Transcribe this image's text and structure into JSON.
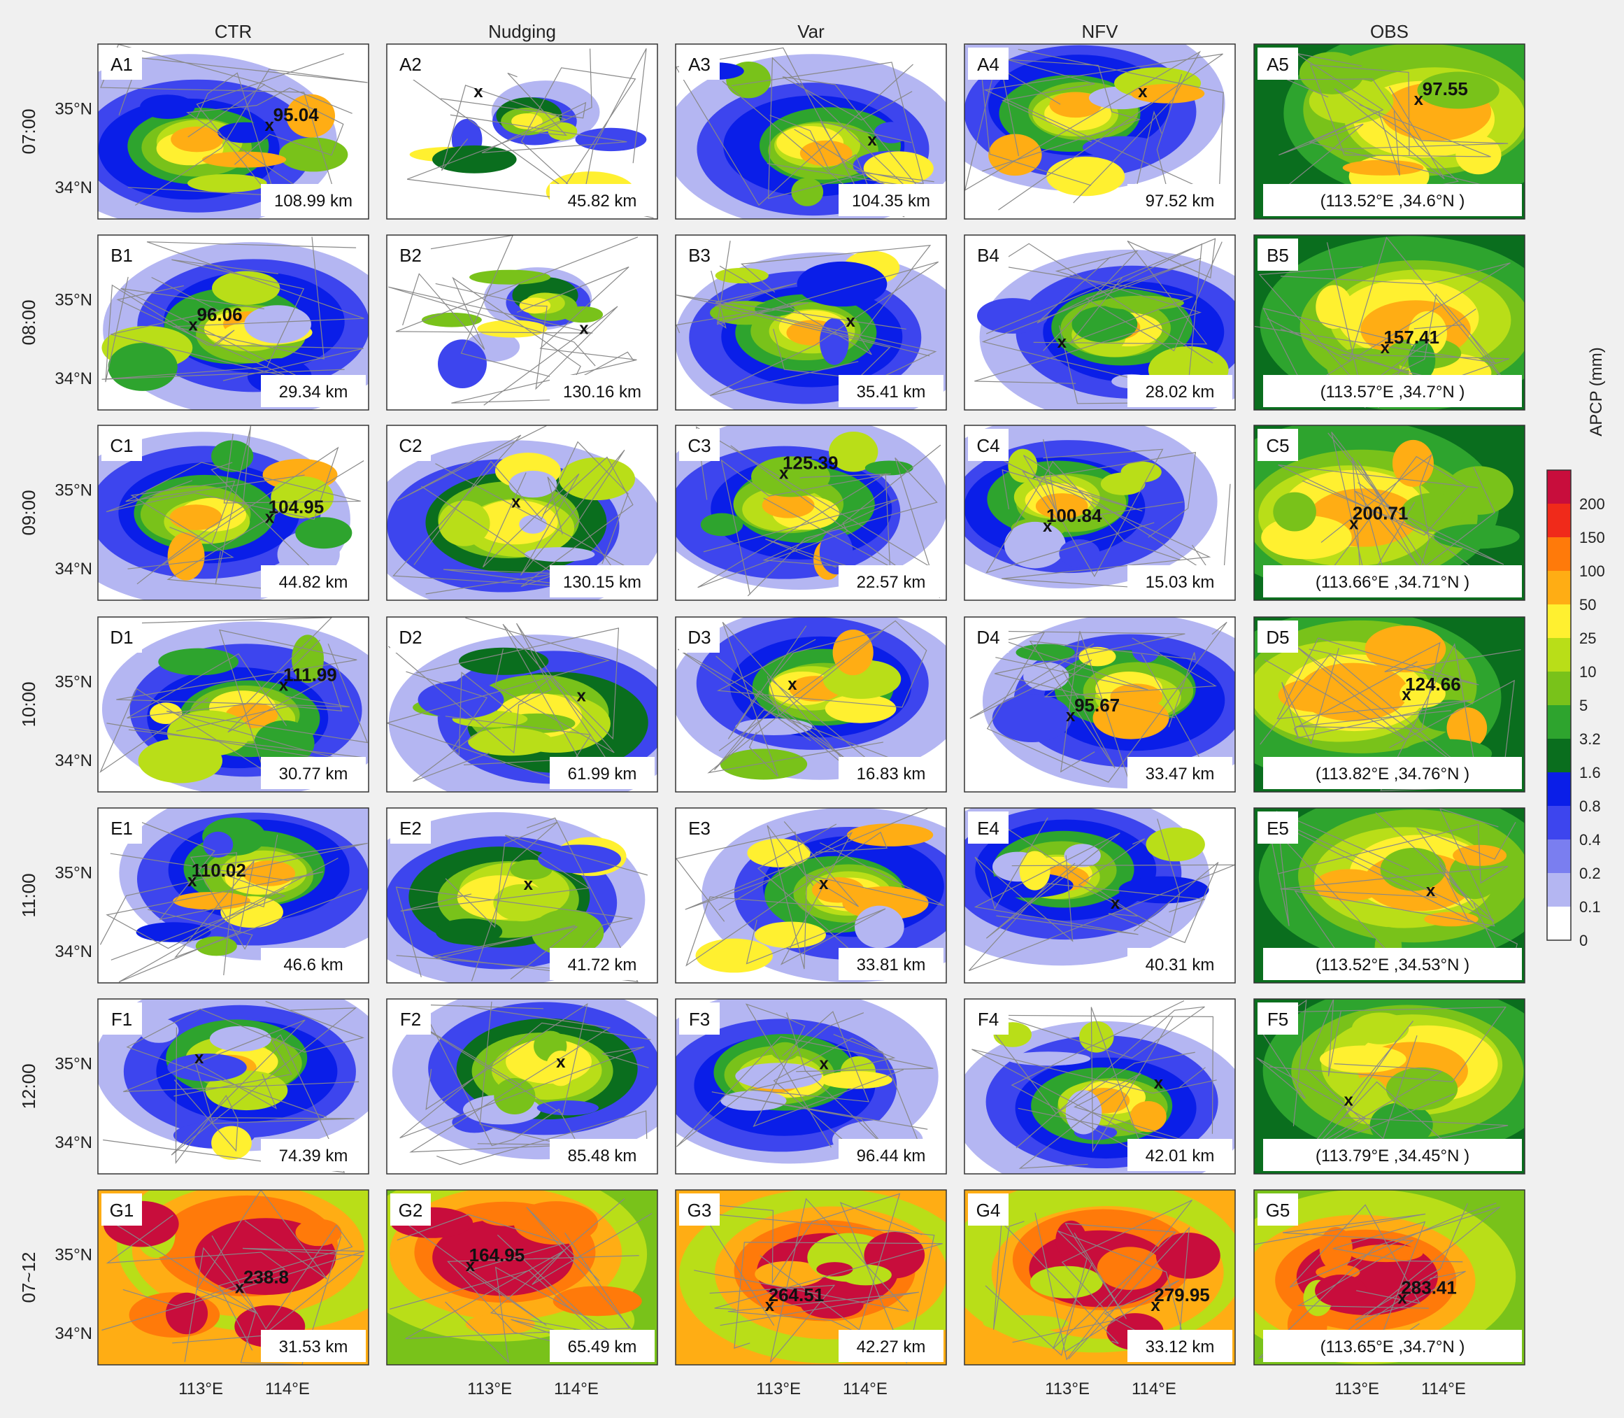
{
  "columns": [
    "CTR",
    "Nudging",
    "Var",
    "NFV",
    "OBS"
  ],
  "rows": [
    {
      "time": "07:00",
      "panels": [
        {
          "label": "A1",
          "distance": "108.99 km",
          "max": "95.04"
        },
        {
          "label": "A2",
          "distance": "45.82 km",
          "max": ""
        },
        {
          "label": "A3",
          "distance": "104.35 km",
          "max": ""
        },
        {
          "label": "A4",
          "distance": "97.52 km",
          "max": ""
        },
        {
          "label": "A5",
          "coord": "(113.52°E ,34.6°N )",
          "max": "97.55"
        }
      ]
    },
    {
      "time": "08:00",
      "panels": [
        {
          "label": "B1",
          "distance": "29.34 km",
          "max": "96.06"
        },
        {
          "label": "B2",
          "distance": "130.16 km",
          "max": ""
        },
        {
          "label": "B3",
          "distance": "35.41 km",
          "max": ""
        },
        {
          "label": "B4",
          "distance": "28.02 km",
          "max": ""
        },
        {
          "label": "B5",
          "coord": "(113.57°E ,34.7°N )",
          "max": "157.41"
        }
      ]
    },
    {
      "time": "09:00",
      "panels": [
        {
          "label": "C1",
          "distance": "44.82 km",
          "max": "104.95"
        },
        {
          "label": "C2",
          "distance": "130.15 km",
          "max": ""
        },
        {
          "label": "C3",
          "distance": "22.57 km",
          "max": "125.39"
        },
        {
          "label": "C4",
          "distance": "15.03 km",
          "max": "100.84"
        },
        {
          "label": "C5",
          "coord": "(113.66°E ,34.71°N )",
          "max": "200.71"
        }
      ]
    },
    {
      "time": "10:00",
      "panels": [
        {
          "label": "D1",
          "distance": "30.77 km",
          "max": "111.99"
        },
        {
          "label": "D2",
          "distance": "61.99 km",
          "max": ""
        },
        {
          "label": "D3",
          "distance": "16.83 km",
          "max": ""
        },
        {
          "label": "D4",
          "distance": "33.47 km",
          "max": "95.67"
        },
        {
          "label": "D5",
          "coord": "(113.82°E ,34.76°N )",
          "max": "124.66"
        }
      ]
    },
    {
      "time": "11:00",
      "panels": [
        {
          "label": "E1",
          "distance": "46.6 km",
          "max": "110.02"
        },
        {
          "label": "E2",
          "distance": "41.72 km",
          "max": ""
        },
        {
          "label": "E3",
          "distance": "33.81 km",
          "max": ""
        },
        {
          "label": "E4",
          "distance": "40.31 km",
          "max": ""
        },
        {
          "label": "E5",
          "coord": "(113.52°E ,34.53°N )",
          "max": ""
        }
      ]
    },
    {
      "time": "12:00",
      "panels": [
        {
          "label": "F1",
          "distance": "74.39 km",
          "max": ""
        },
        {
          "label": "F2",
          "distance": "85.48 km",
          "max": ""
        },
        {
          "label": "F3",
          "distance": "96.44 km",
          "max": ""
        },
        {
          "label": "F4",
          "distance": "42.01 km",
          "max": ""
        },
        {
          "label": "F5",
          "coord": "(113.79°E ,34.45°N )",
          "max": ""
        }
      ]
    },
    {
      "time": "07~12",
      "panels": [
        {
          "label": "G1",
          "distance": "31.53 km",
          "max": "238.8"
        },
        {
          "label": "G2",
          "distance": "65.49 km",
          "max": "164.95"
        },
        {
          "label": "G3",
          "distance": "42.27 km",
          "max": "264.51"
        },
        {
          "label": "G4",
          "distance": "33.12 km",
          "max": "279.95"
        },
        {
          "label": "G5",
          "coord": "(113.65°E ,34.7°N )",
          "max": "283.41"
        }
      ]
    }
  ],
  "y_ticks": [
    "35°N",
    "34°N"
  ],
  "x_ticks": [
    "113°E",
    "114°E"
  ],
  "marker_symbol": "x",
  "colorbar": {
    "title": "APCP (mm)",
    "labels": [
      "0",
      "0.1",
      "0.2",
      "0.4",
      "0.8",
      "1.6",
      "3.2",
      "5",
      "10",
      "25",
      "50",
      "100",
      "150",
      "200"
    ],
    "colors": [
      "#ffffff",
      "#b4b6f2",
      "#7a7ef0",
      "#3d45ee",
      "#0a1ee8",
      "#0a6e1e",
      "#2ea42e",
      "#79c21a",
      "#b9de18",
      "#fff030",
      "#ffad14",
      "#ff7a0a",
      "#f02a1a",
      "#c80d3c",
      "#8c0e78"
    ]
  }
}
